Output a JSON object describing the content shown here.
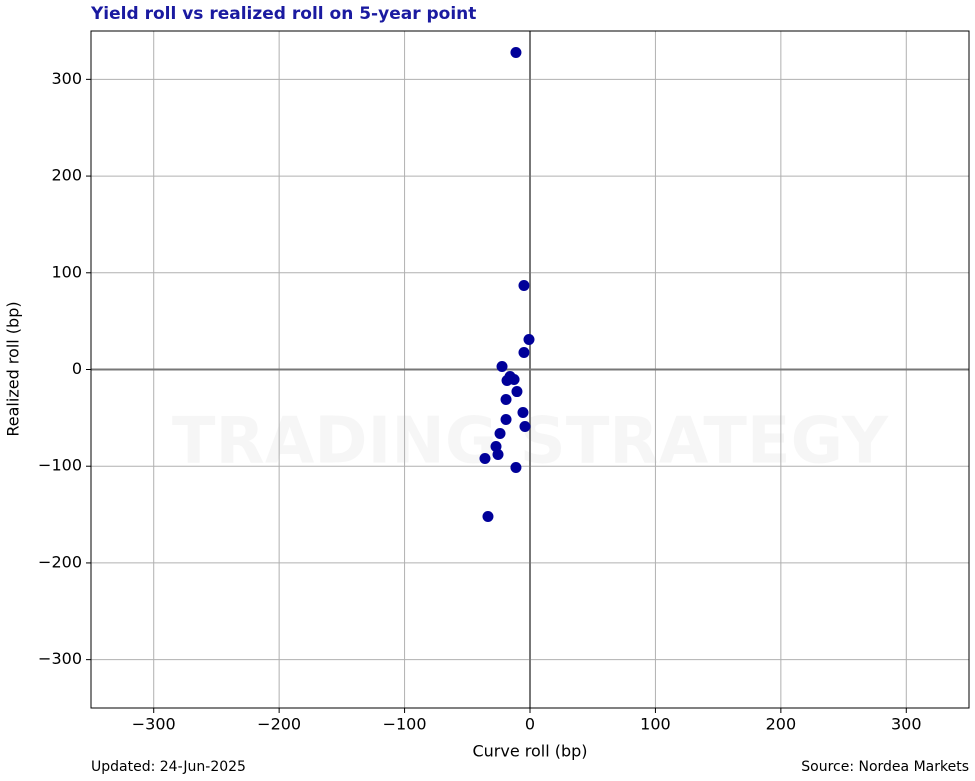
{
  "chart_data": {
    "type": "scatter",
    "title": "Yield roll vs realized roll on 5-year point",
    "x_label": "Curve roll (bp)",
    "y_label": "Realized roll (bp)",
    "footer_left": "Updated: 24-Jun-2025",
    "footer_right": "Source: Nordea Markets",
    "watermark": "TRADING STRATEGY",
    "color": "#000099",
    "grid": true,
    "zero_lines": true,
    "xlim": [
      -350,
      350
    ],
    "ylim": [
      -350,
      350
    ],
    "xticks": [
      {
        "value": -300,
        "label": "−300"
      },
      {
        "value": -200,
        "label": "−200"
      },
      {
        "value": -100,
        "label": "−100"
      },
      0,
      100,
      200,
      300
    ],
    "yticks": [
      {
        "value": -300,
        "label": "−300"
      },
      {
        "value": -200,
        "label": "−200"
      },
      {
        "value": -100,
        "label": "−100"
      },
      0,
      100,
      200,
      300
    ],
    "x": [
      -11.2,
      -4.8,
      -0.8,
      -4.8,
      -22.3,
      -18.3,
      -15.9,
      -12.7,
      -10.4,
      -19.1,
      -5.6,
      -4.0,
      -19.1,
      -23.9,
      -27.1,
      -25.5,
      -35.9,
      -11.2,
      -33.5
    ],
    "y": [
      327.8,
      86.9,
      31.0,
      17.6,
      3.1,
      -11.4,
      -7.2,
      -10.3,
      -22.8,
      -31.0,
      -44.5,
      -58.9,
      -51.7,
      -66.2,
      -79.6,
      -87.9,
      -92.0,
      -101.3,
      -152.0
    ]
  }
}
